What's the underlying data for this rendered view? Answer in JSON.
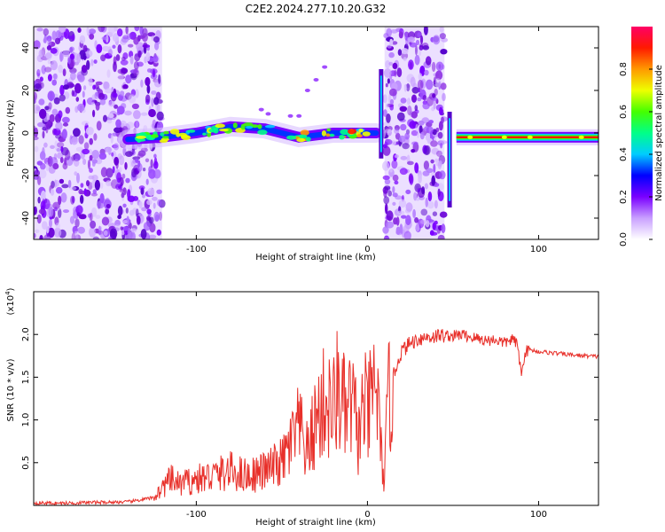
{
  "chart_data": [
    {
      "type": "heatmap",
      "title": "C2E2.2024.277.10.20.G32",
      "xlabel": "Height of straight line (km)",
      "ylabel": "Frequency (Hz)",
      "xlim": [
        -195,
        135
      ],
      "ylim": [
        -50,
        50
      ],
      "xticks": [
        -100,
        0,
        100
      ],
      "yticks": [
        -40,
        -20,
        0,
        20,
        40
      ],
      "colorbar": {
        "label": "Normalized spectral amplitude",
        "range": [
          0,
          1
        ],
        "ticks": [
          "0.0",
          "0.2",
          "0.4",
          "0.6",
          "0.8"
        ]
      },
      "features": [
        {
          "name": "noise-region-left",
          "x_range": [
            -195,
            -120
          ],
          "y_range": [
            -50,
            50
          ]
        },
        {
          "name": "signal-trace",
          "points": [
            [
              -140,
              -3
            ],
            [
              -120,
              -2
            ],
            [
              -100,
              0
            ],
            [
              -80,
              3
            ],
            [
              -60,
              2
            ],
            [
              -40,
              -2
            ],
            [
              -20,
              0
            ],
            [
              -5,
              0
            ],
            [
              5,
              0
            ]
          ]
        },
        {
          "name": "noise-region-middle",
          "x_range": [
            10,
            45
          ],
          "y_range": [
            -50,
            50
          ]
        },
        {
          "name": "strong-line",
          "x_range": [
            52,
            135
          ],
          "y_value": -2
        }
      ]
    },
    {
      "type": "line",
      "xlabel": "Height of straight line (km)",
      "ylabel": "SNR (10 * v/v)",
      "yscale_label": "(x10",
      "yscale_exp": "4",
      "xlim": [
        -195,
        135
      ],
      "ylim": [
        0,
        25000
      ],
      "xticks": [
        -100,
        0,
        100
      ],
      "yticks": [
        "0.5",
        "1.0",
        "1.5",
        "2.0"
      ],
      "series": [
        {
          "name": "SNR",
          "color": "#e8302a",
          "x": [
            -195,
            -180,
            -160,
            -140,
            -125,
            -120,
            -115,
            -110,
            -100,
            -90,
            -80,
            -70,
            -60,
            -50,
            -45,
            -40,
            -35,
            -30,
            -25,
            -20,
            -17,
            -15,
            -12,
            -10,
            -8,
            -5,
            -2,
            0,
            3,
            5,
            8,
            10,
            12,
            15,
            18,
            20,
            25,
            30,
            35,
            40,
            45,
            50,
            55,
            60,
            65,
            70,
            75,
            80,
            85,
            88,
            90,
            92,
            95,
            100,
            110,
            120,
            135
          ],
          "values": [
            300,
            250,
            350,
            400,
            900,
            2000,
            3000,
            2500,
            3000,
            3500,
            4000,
            3500,
            4000,
            5000,
            7000,
            9000,
            6000,
            10000,
            12000,
            11000,
            14000,
            12000,
            10000,
            12000,
            11000,
            8000,
            12000,
            10000,
            13000,
            15000,
            6000,
            3000,
            12000,
            15000,
            17000,
            18000,
            19000,
            19500,
            19700,
            19800,
            19900,
            19800,
            20000,
            19700,
            19500,
            19300,
            19400,
            19000,
            19500,
            18500,
            15000,
            18000,
            18200,
            18000,
            17800,
            17600,
            17400
          ]
        }
      ]
    }
  ]
}
